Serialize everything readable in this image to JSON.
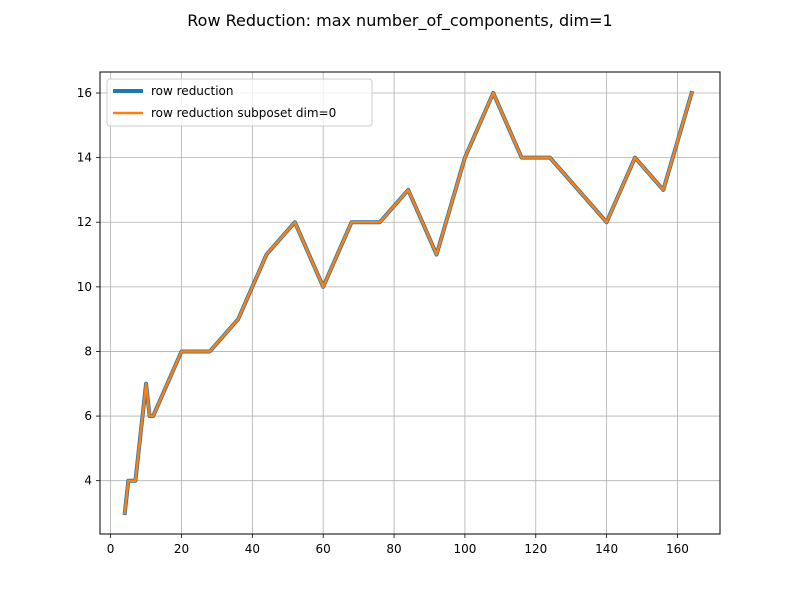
{
  "chart_data": {
    "type": "line",
    "title": "Row Reduction: max number_of_components, dim=1",
    "xlabel": "",
    "ylabel": "",
    "xlim": [
      -3.0,
      172.0
    ],
    "ylim": [
      2.35,
      16.65
    ],
    "xticks": [
      0,
      20,
      40,
      60,
      80,
      100,
      120,
      140,
      160
    ],
    "yticks": [
      4,
      6,
      8,
      10,
      12,
      14,
      16
    ],
    "grid": true,
    "legend_position": "upper-left",
    "x": [
      4,
      5,
      7,
      10,
      11,
      12,
      20,
      28,
      36,
      44,
      52,
      60,
      68,
      76,
      84,
      92,
      100,
      108,
      116,
      124,
      140,
      148,
      156,
      164
    ],
    "series": [
      {
        "name": "row reduction",
        "color": "#1f77b4",
        "values": [
          3,
          4,
          4,
          7,
          6,
          6,
          8,
          8,
          9,
          11,
          12,
          10,
          12,
          12,
          13,
          11,
          14,
          16,
          14,
          14,
          12,
          14,
          13,
          16
        ]
      },
      {
        "name": "row reduction subposet dim=0",
        "color": "#ff7f0e",
        "values": [
          3,
          4,
          4,
          7,
          6,
          6,
          8,
          8,
          9,
          11,
          12,
          10,
          12,
          12,
          13,
          11,
          14,
          16,
          14,
          14,
          12,
          14,
          13,
          16
        ]
      }
    ]
  }
}
